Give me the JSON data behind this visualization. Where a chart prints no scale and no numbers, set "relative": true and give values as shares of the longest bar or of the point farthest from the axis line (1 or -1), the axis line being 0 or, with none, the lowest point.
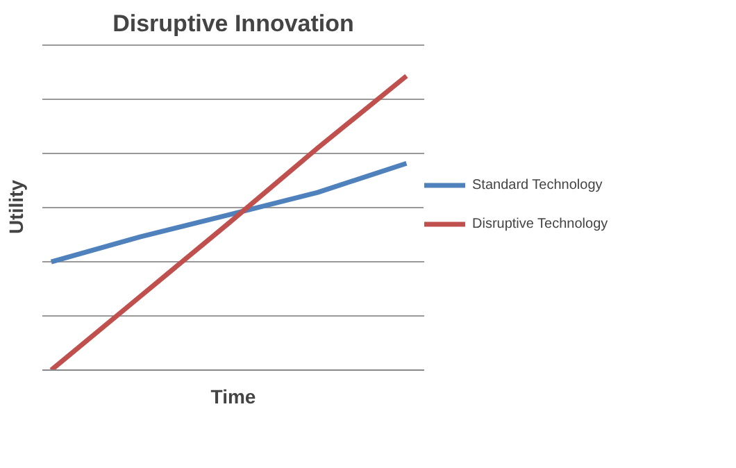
{
  "chart_data": {
    "type": "line",
    "title": "Disruptive Innovation",
    "xlabel": "Time",
    "ylabel": "Utility",
    "relative": true,
    "categories": [
      null,
      null,
      null,
      null,
      null
    ],
    "series": [
      {
        "name": "Standard Technology",
        "color": "#4f81bd",
        "values": [
          0.368,
          0.453,
          0.528,
          0.604,
          0.703
        ]
      },
      {
        "name": "Disruptive Technology",
        "color": "#c0504d",
        "values": [
          0,
          0.25,
          0.5,
          0.755,
          1
        ]
      }
    ],
    "grid": "y",
    "legend": "right",
    "marker": "none",
    "line_style": "solid"
  }
}
